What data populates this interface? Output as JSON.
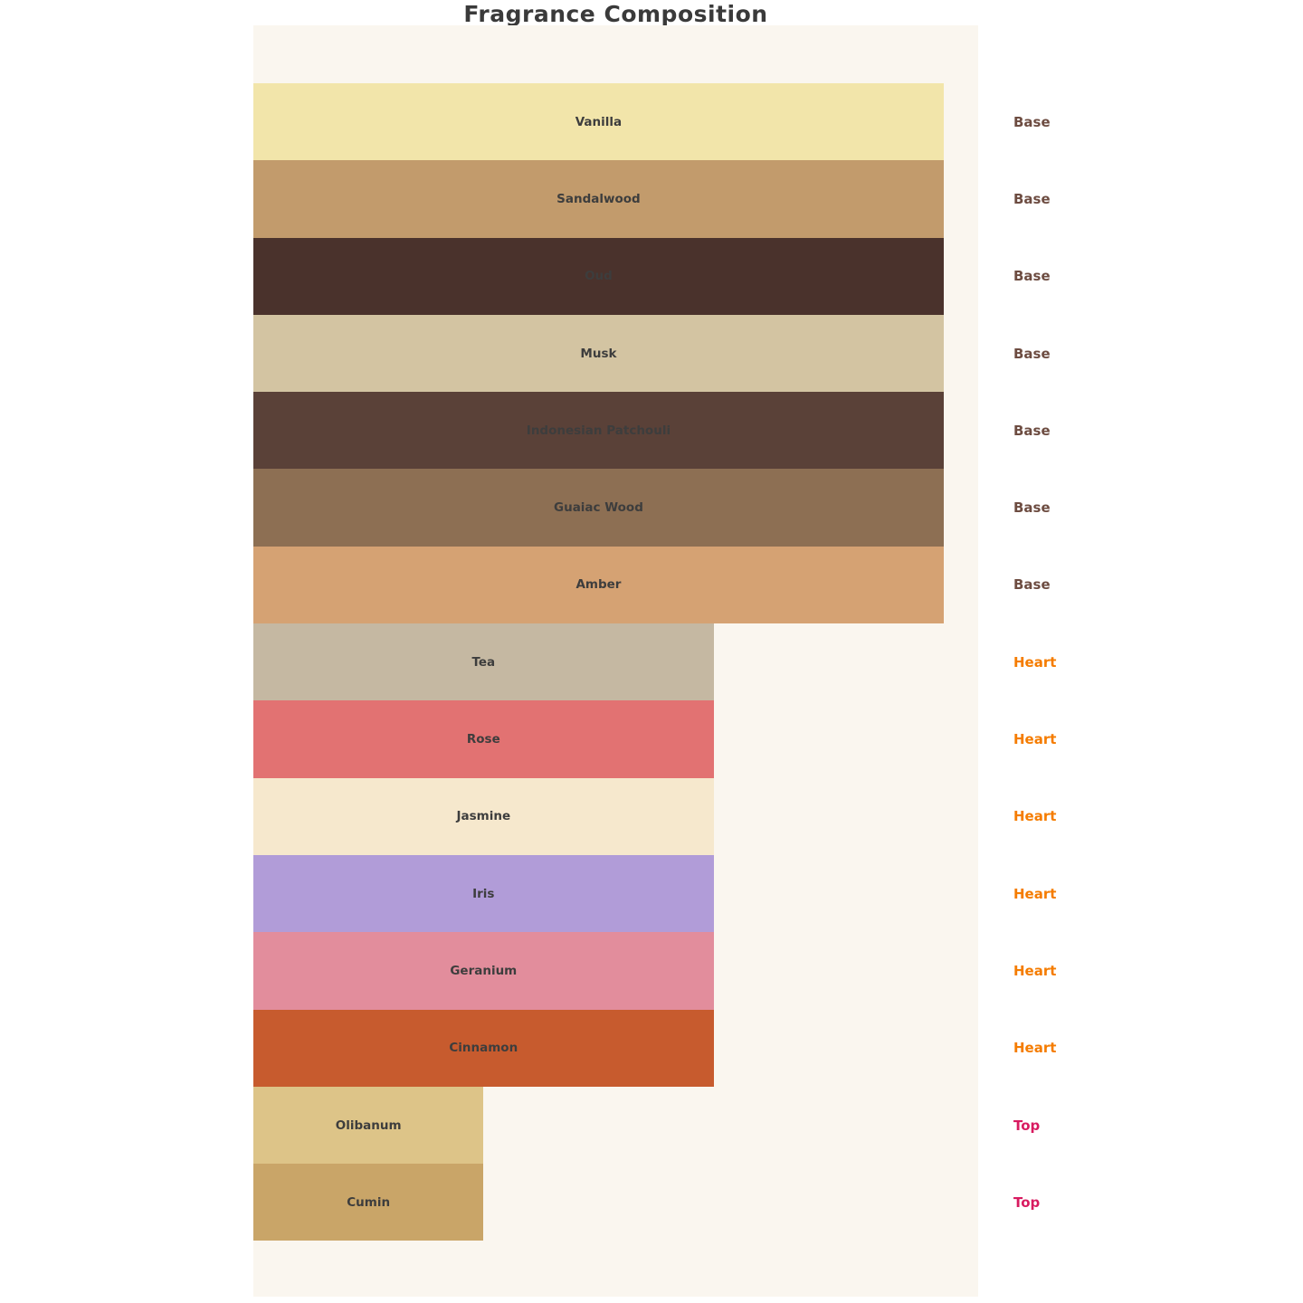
{
  "title": "Fragrance Composition",
  "panel": {
    "background": "#faf6ef",
    "page_background": "#ffffff"
  },
  "label_color": "#3d3d3d",
  "type_colors": {
    "Base": "#6d4c41",
    "Heart": "#f57c00",
    "Top": "#d81b60"
  },
  "notes": [
    {
      "name": "Vanilla",
      "type": "Base",
      "value": 3,
      "color": "#f2e5aa"
    },
    {
      "name": "Sandalwood",
      "type": "Base",
      "value": 3,
      "color": "#c29b6c"
    },
    {
      "name": "Oud",
      "type": "Base",
      "value": 3,
      "color": "#4a322c"
    },
    {
      "name": "Musk",
      "type": "Base",
      "value": 3,
      "color": "#d3c4a2"
    },
    {
      "name": "Indonesian Patchouli",
      "type": "Base",
      "value": 3,
      "color": "#5a4138"
    },
    {
      "name": "Guaiac Wood",
      "type": "Base",
      "value": 3,
      "color": "#8d6f53"
    },
    {
      "name": "Amber",
      "type": "Base",
      "value": 3,
      "color": "#d5a273"
    },
    {
      "name": "Tea",
      "type": "Heart",
      "value": 2,
      "color": "#c5b8a2"
    },
    {
      "name": "Rose",
      "type": "Heart",
      "value": 2,
      "color": "#e27272"
    },
    {
      "name": "Jasmine",
      "type": "Heart",
      "value": 2,
      "color": "#f6e8cd"
    },
    {
      "name": "Iris",
      "type": "Heart",
      "value": 2,
      "color": "#b19cd8"
    },
    {
      "name": "Geranium",
      "type": "Heart",
      "value": 2,
      "color": "#e28d9c"
    },
    {
      "name": "Cinnamon",
      "type": "Heart",
      "value": 2,
      "color": "#c75b2e"
    },
    {
      "name": "Olibanum",
      "type": "Top",
      "value": 1,
      "color": "#ddc488"
    },
    {
      "name": "Cumin",
      "type": "Top",
      "value": 1,
      "color": "#c9a568"
    }
  ],
  "chart_data": {
    "type": "bar",
    "orientation": "horizontal",
    "title": "Fragrance Composition",
    "categories": [
      "Vanilla",
      "Sandalwood",
      "Oud",
      "Musk",
      "Indonesian Patchouli",
      "Guaiac Wood",
      "Amber",
      "Tea",
      "Rose",
      "Jasmine",
      "Iris",
      "Geranium",
      "Cinnamon",
      "Olibanum",
      "Cumin"
    ],
    "values": [
      3,
      3,
      3,
      3,
      3,
      3,
      3,
      2,
      2,
      2,
      2,
      2,
      2,
      1,
      1
    ],
    "right_annotations": [
      "Base",
      "Base",
      "Base",
      "Base",
      "Base",
      "Base",
      "Base",
      "Heart",
      "Heart",
      "Heart",
      "Heart",
      "Heart",
      "Heart",
      "Top",
      "Top"
    ],
    "bar_colors": [
      "#f2e5aa",
      "#c29b6c",
      "#4a322c",
      "#d3c4a2",
      "#5a4138",
      "#8d6f53",
      "#d5a273",
      "#c5b8a2",
      "#e27272",
      "#f6e8cd",
      "#b19cd8",
      "#e28d9c",
      "#c75b2e",
      "#ddc488",
      "#c9a568"
    ],
    "xlabel": "",
    "ylabel": "",
    "xlim": [
      0,
      3.15
    ],
    "grid": false,
    "legend": false,
    "axes_visible": false,
    "bar_labels_inside_centered": true,
    "plot_background": "#faf6ef"
  }
}
